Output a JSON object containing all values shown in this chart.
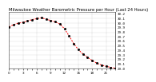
{
  "title": "Milwaukee Weather Barometric Pressure per Hour (Last 24 Hours)",
  "ylim": [
    29.0,
    30.25
  ],
  "xlim": [
    0,
    23
  ],
  "hours": [
    0,
    1,
    2,
    3,
    4,
    5,
    6,
    7,
    8,
    9,
    10,
    11,
    12,
    13,
    14,
    15,
    16,
    17,
    18,
    19,
    20,
    21,
    22,
    23
  ],
  "pressure": [
    29.92,
    29.97,
    30.0,
    30.02,
    30.05,
    30.08,
    30.1,
    30.12,
    30.09,
    30.06,
    30.03,
    29.98,
    29.88,
    29.72,
    29.55,
    29.42,
    29.32,
    29.25,
    29.18,
    29.12,
    29.08,
    29.05,
    29.03,
    29.01
  ],
  "line_color": "#ff0000",
  "marker_color": "#000000",
  "bg_color": "#ffffff",
  "plot_bg": "#ffffff",
  "grid_color": "#999999",
  "right_panel_color": "#ffffff",
  "title_fontsize": 3.8,
  "tick_fontsize": 3.0,
  "ylabel_fontsize": 3.0,
  "line_width": 0.7,
  "marker_size": 1.0,
  "yticks": [
    29.0,
    29.1,
    29.2,
    29.3,
    29.4,
    29.5,
    29.6,
    29.7,
    29.8,
    29.9,
    30.0,
    30.1,
    30.2
  ],
  "xtick_labels": [
    "0",
    "",
    "",
    "3",
    "",
    "",
    "6",
    "",
    "",
    "9",
    "",
    "",
    "12",
    "",
    "",
    "15",
    "",
    "",
    "18",
    "",
    "",
    "21",
    "",
    ""
  ],
  "vgrid_positions": [
    0,
    3,
    6,
    9,
    12,
    15,
    18,
    21
  ]
}
